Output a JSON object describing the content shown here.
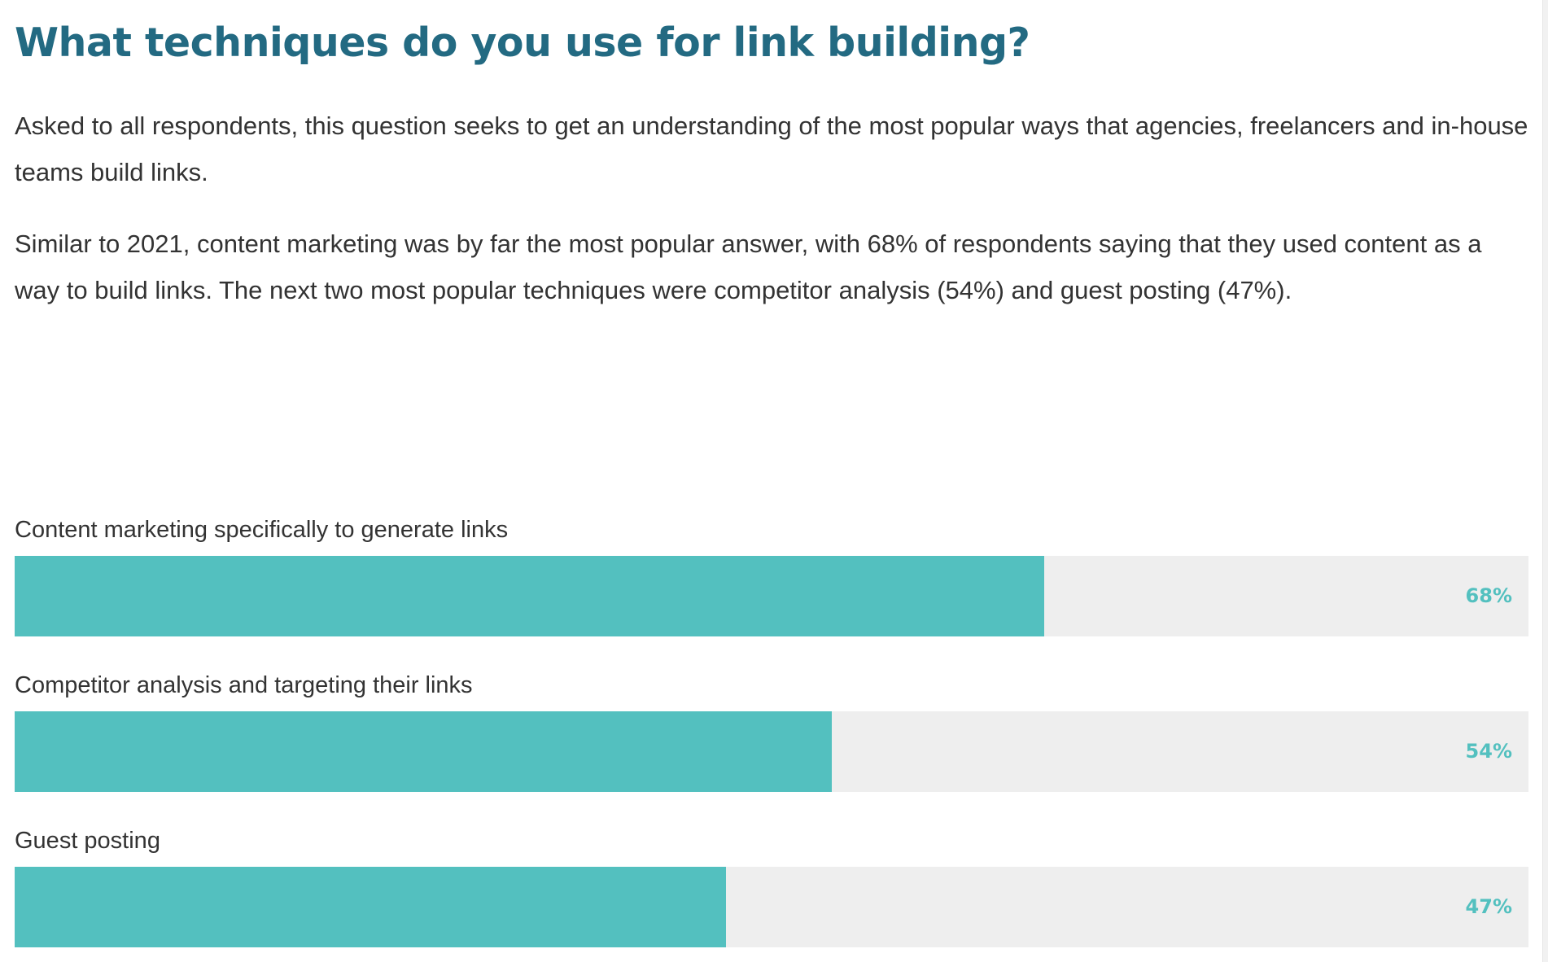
{
  "page": {
    "title": "What techniques do you use for link building?",
    "paragraphs": [
      "Asked to all respondents, this question seeks to get an understanding of the most popular ways that agencies, freelancers and in-house teams build links.",
      "Similar to 2021, content marketing was by far the most popular answer, with 68% of respondents saying that they used content as a way to build links. The next two most popular techniques were competitor analysis (54%) and guest posting (47%)."
    ]
  },
  "colors": {
    "title": "#236a82",
    "bar_fill": "#53c0bf",
    "bar_track": "#eeeeee",
    "text": "#333333"
  },
  "bars": [
    {
      "label": "Content marketing specifically to generate links",
      "value": 68,
      "value_label": "68%"
    },
    {
      "label": "Competitor analysis and targeting their links",
      "value": 54,
      "value_label": "54%"
    },
    {
      "label": "Guest posting",
      "value": 47,
      "value_label": "47%"
    }
  ],
  "chart_data": {
    "type": "bar",
    "orientation": "horizontal",
    "title": "What techniques do you use for link building?",
    "categories": [
      "Content marketing specifically to generate links",
      "Competitor analysis and targeting their links",
      "Guest posting"
    ],
    "values": [
      68,
      54,
      47
    ],
    "value_labels": [
      "68%",
      "54%",
      "47%"
    ],
    "xlabel": "",
    "ylabel": "",
    "xlim": [
      0,
      100
    ],
    "unit": "%",
    "grid": false,
    "legend": null
  }
}
